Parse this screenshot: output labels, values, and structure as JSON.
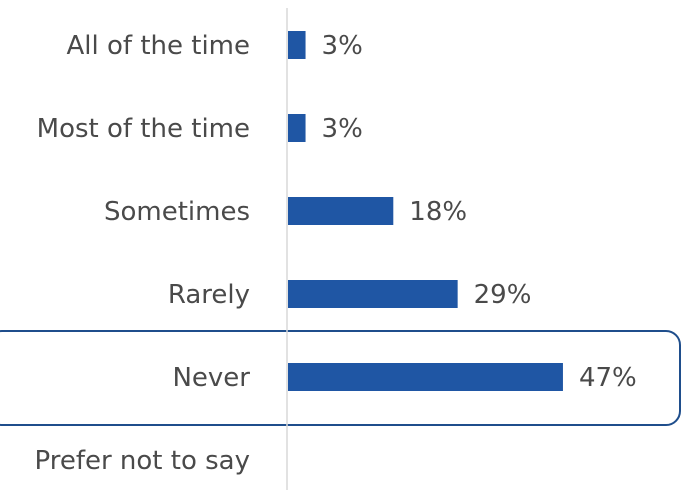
{
  "chart_data": {
    "type": "bar",
    "orientation": "horizontal",
    "categories": [
      "All of the time",
      "Most of the time",
      "Sometimes",
      "Rarely",
      "Never",
      "Prefer not to say"
    ],
    "values": [
      3,
      3,
      18,
      29,
      47,
      0
    ],
    "data_labels": [
      "3%",
      "3%",
      "18%",
      "29%",
      "47%",
      ""
    ],
    "unit": "%",
    "highlighted_category": "Never",
    "grid": false,
    "legend": "none",
    "colors": {
      "bar": "#1f56a4",
      "highlight_outline": "#1f4e8c",
      "axis": "#d9d9d9",
      "text": "#4a4a4a"
    }
  }
}
